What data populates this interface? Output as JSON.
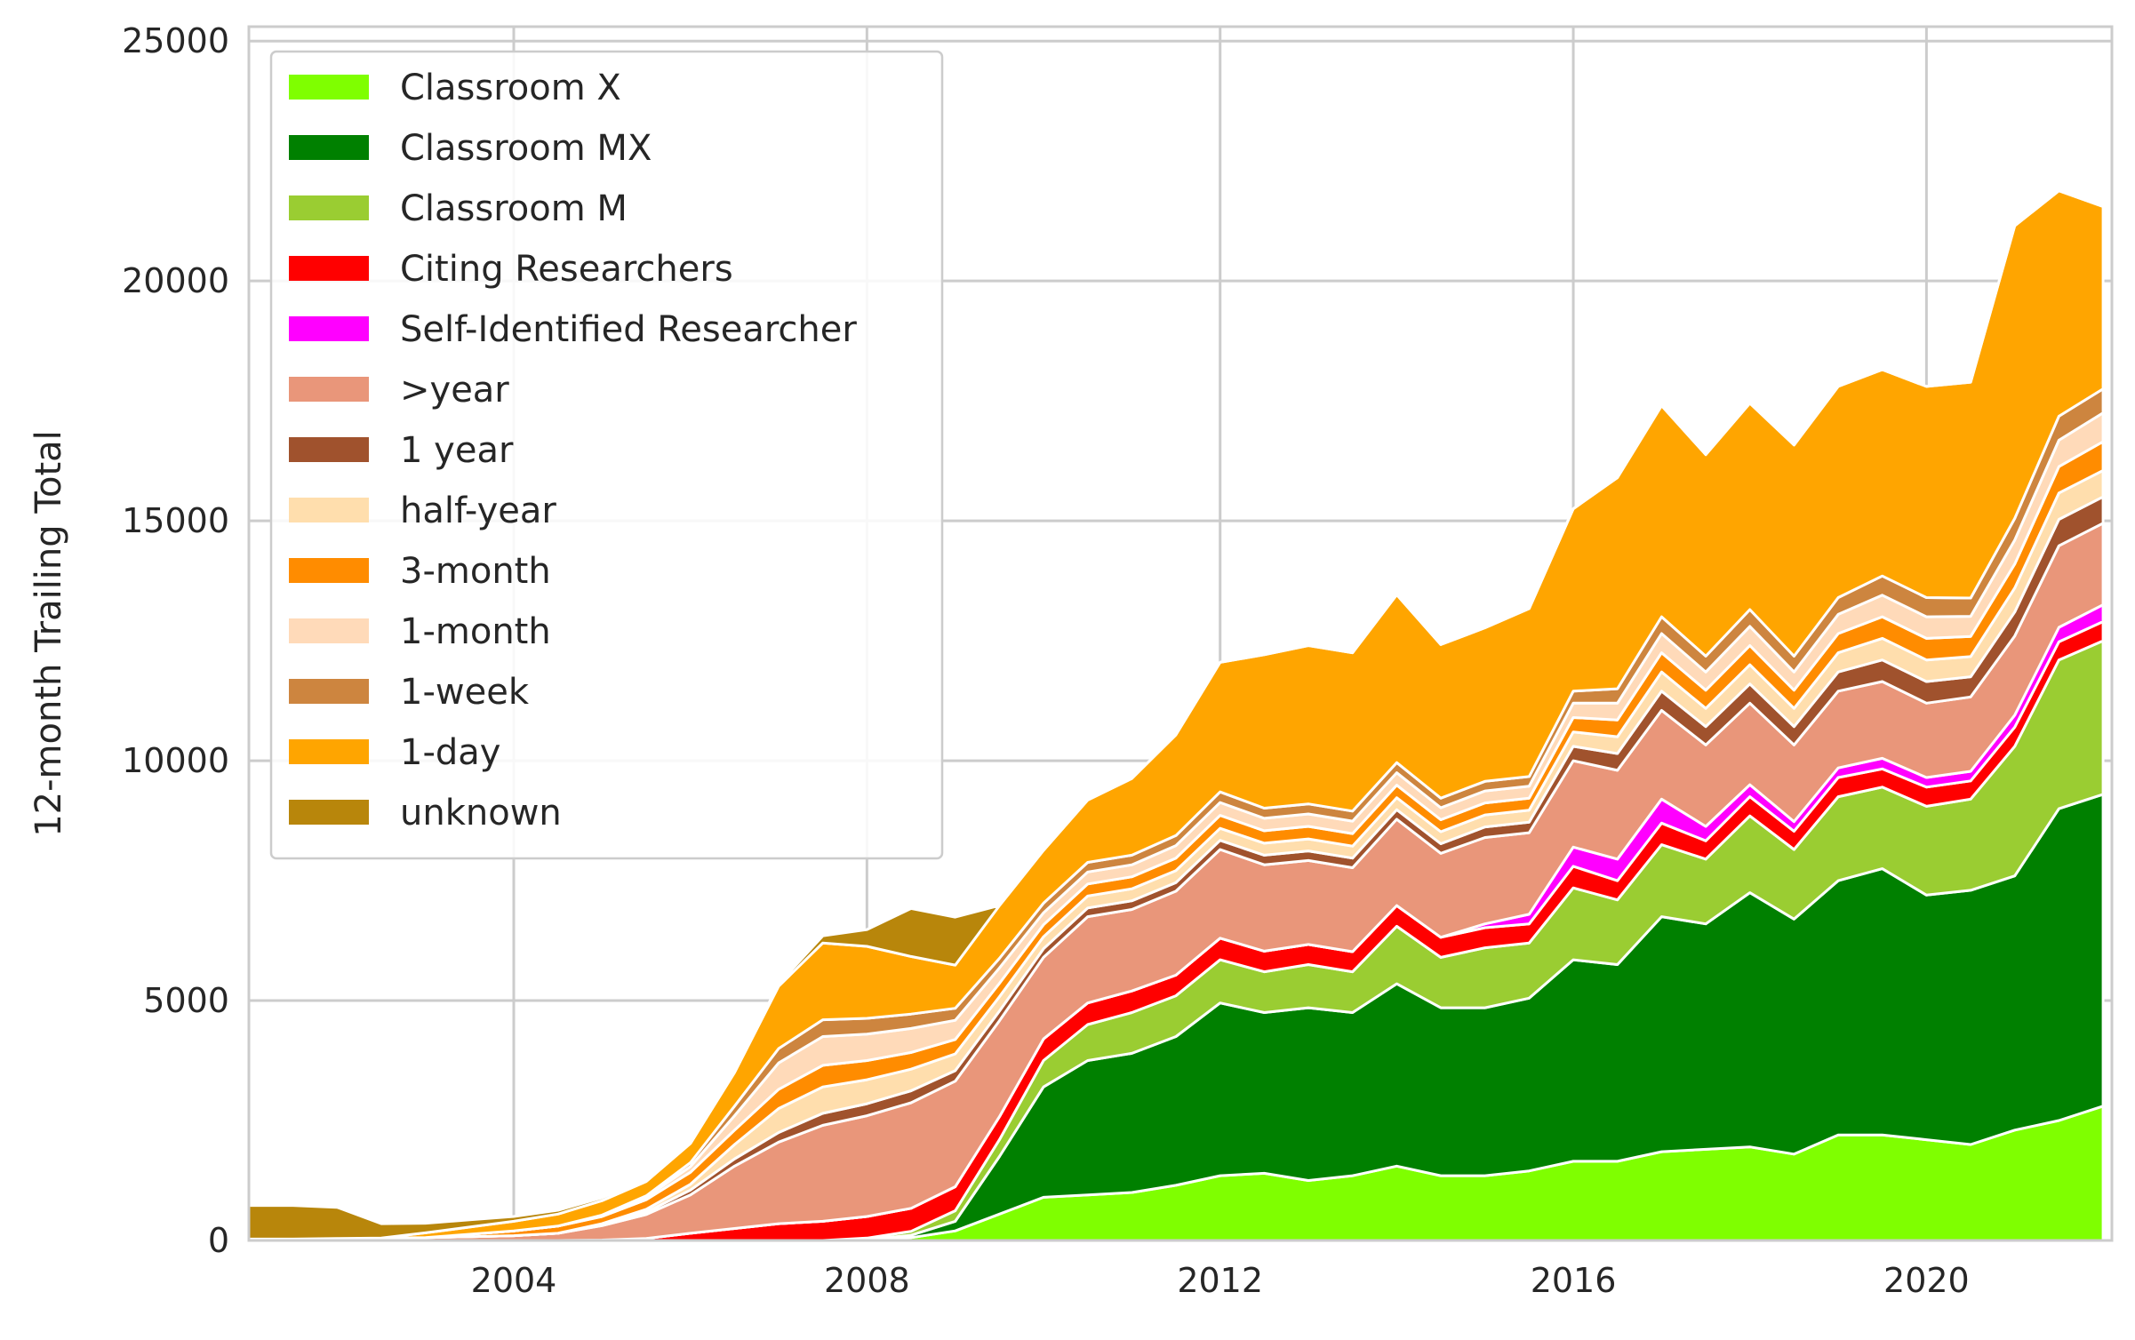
{
  "chart_data": {
    "type": "area",
    "stacked": true,
    "title": "",
    "xlabel": "",
    "ylabel": "12-month Trailing Total",
    "xlim": [
      2001.0,
      2022.1
    ],
    "ylim": [
      0,
      25300
    ],
    "xticks": [
      2004,
      2008,
      2012,
      2016,
      2020
    ],
    "yticks": [
      0,
      5000,
      10000,
      15000,
      20000,
      25000
    ],
    "grid": true,
    "legend_position": "top-left",
    "x": [
      2001.0,
      2001.5,
      2002.0,
      2002.5,
      2003.0,
      2003.5,
      2004.0,
      2004.5,
      2005.0,
      2005.5,
      2006.0,
      2006.5,
      2007.0,
      2007.5,
      2008.0,
      2008.5,
      2009.0,
      2009.5,
      2010.0,
      2010.5,
      2011.0,
      2011.5,
      2012.0,
      2012.5,
      2013.0,
      2013.5,
      2014.0,
      2014.5,
      2015.0,
      2015.5,
      2016.0,
      2016.5,
      2017.0,
      2017.5,
      2018.0,
      2018.5,
      2019.0,
      2019.5,
      2020.0,
      2020.5,
      2021.0,
      2021.5,
      2022.0
    ],
    "series": [
      {
        "name": "Classroom X",
        "color": "#7fff00",
        "values": [
          0,
          0,
          0,
          0,
          0,
          0,
          0,
          0,
          0,
          0,
          0,
          0,
          0,
          0,
          20,
          60,
          200,
          550,
          900,
          950,
          1000,
          1150,
          1350,
          1400,
          1250,
          1350,
          1550,
          1350,
          1350,
          1450,
          1650,
          1650,
          1850,
          1900,
          1950,
          1800,
          2200,
          2200,
          2100,
          2000,
          2300,
          2500,
          2800
        ]
      },
      {
        "name": "Classroom MX",
        "color": "#008000",
        "values": [
          0,
          0,
          0,
          0,
          0,
          0,
          0,
          0,
          0,
          0,
          0,
          0,
          0,
          0,
          0,
          50,
          200,
          1200,
          2300,
          2800,
          2900,
          3100,
          3600,
          3350,
          3600,
          3400,
          3800,
          3500,
          3500,
          3600,
          4200,
          4100,
          4900,
          4700,
          5300,
          4900,
          5300,
          5550,
          5100,
          5300,
          5300,
          6500,
          6500
        ]
      },
      {
        "name": "Classroom M",
        "color": "#9acd32",
        "values": [
          0,
          0,
          0,
          0,
          0,
          0,
          0,
          0,
          0,
          0,
          0,
          0,
          0,
          0,
          30,
          80,
          220,
          350,
          550,
          750,
          850,
          850,
          900,
          850,
          900,
          850,
          1200,
          1050,
          1250,
          1150,
          1500,
          1350,
          1500,
          1350,
          1600,
          1450,
          1750,
          1700,
          1850,
          1900,
          2700,
          3100,
          3200
        ]
      },
      {
        "name": "Citing Researchers",
        "color": "#ff0000",
        "values": [
          0,
          0,
          0,
          0,
          0,
          0,
          0,
          0,
          10,
          40,
          150,
          250,
          350,
          400,
          450,
          480,
          500,
          480,
          450,
          450,
          450,
          430,
          450,
          430,
          420,
          420,
          430,
          420,
          420,
          400,
          450,
          400,
          450,
          380,
          400,
          380,
          400,
          380,
          400,
          380,
          400,
          380,
          400
        ]
      },
      {
        "name": "Self-Identified Researcher",
        "color": "#ff00ff",
        "values": [
          0,
          0,
          0,
          0,
          0,
          0,
          0,
          0,
          0,
          0,
          0,
          0,
          0,
          0,
          0,
          0,
          0,
          0,
          0,
          0,
          0,
          0,
          0,
          0,
          0,
          0,
          0,
          0,
          80,
          200,
          400,
          450,
          500,
          300,
          250,
          200,
          200,
          220,
          200,
          200,
          250,
          300,
          350
        ]
      },
      {
        "name": ">year",
        "color": "#e9967a",
        "values": [
          30,
          30,
          40,
          50,
          60,
          80,
          100,
          150,
          300,
          500,
          800,
          1300,
          1700,
          2000,
          2100,
          2200,
          2200,
          2000,
          1700,
          1800,
          1700,
          1750,
          1850,
          1800,
          1750,
          1750,
          1800,
          1750,
          1800,
          1700,
          1800,
          1850,
          1850,
          1700,
          1700,
          1600,
          1600,
          1600,
          1550,
          1550,
          1650,
          1700,
          1700
        ]
      },
      {
        "name": "1 year",
        "color": "#a0522d",
        "values": [
          0,
          0,
          0,
          0,
          0,
          0,
          0,
          0,
          20,
          50,
          100,
          150,
          200,
          250,
          250,
          250,
          220,
          200,
          180,
          180,
          180,
          180,
          190,
          200,
          200,
          200,
          200,
          200,
          220,
          220,
          300,
          350,
          400,
          380,
          400,
          380,
          400,
          450,
          450,
          420,
          500,
          550,
          550
        ]
      },
      {
        "name": "half-year",
        "color": "#ffdead",
        "values": [
          0,
          0,
          0,
          0,
          0,
          0,
          0,
          0,
          20,
          60,
          120,
          300,
          500,
          550,
          500,
          450,
          350,
          300,
          250,
          250,
          250,
          250,
          250,
          250,
          250,
          250,
          250,
          250,
          250,
          250,
          300,
          350,
          400,
          380,
          400,
          380,
          400,
          450,
          450,
          420,
          500,
          550,
          550
        ]
      },
      {
        "name": "3-month",
        "color": "#ff8c00",
        "values": [
          0,
          0,
          0,
          0,
          0,
          50,
          100,
          150,
          150,
          200,
          250,
          300,
          400,
          450,
          400,
          350,
          300,
          280,
          250,
          250,
          250,
          260,
          270,
          260,
          260,
          260,
          260,
          250,
          250,
          250,
          300,
          350,
          400,
          380,
          400,
          380,
          400,
          450,
          450,
          420,
          500,
          550,
          600
        ]
      },
      {
        "name": "1-month",
        "color": "#ffdab9",
        "values": [
          0,
          0,
          0,
          0,
          0,
          0,
          0,
          0,
          20,
          50,
          120,
          300,
          550,
          600,
          550,
          500,
          400,
          320,
          250,
          250,
          250,
          260,
          270,
          260,
          260,
          260,
          260,
          250,
          250,
          250,
          300,
          350,
          400,
          380,
          400,
          380,
          400,
          450,
          450,
          420,
          500,
          550,
          600
        ]
      },
      {
        "name": "1-week",
        "color": "#cd853f",
        "values": [
          0,
          0,
          0,
          0,
          0,
          0,
          0,
          0,
          10,
          30,
          80,
          200,
          300,
          350,
          330,
          300,
          250,
          200,
          200,
          200,
          200,
          210,
          220,
          210,
          210,
          210,
          210,
          200,
          200,
          200,
          250,
          300,
          350,
          330,
          350,
          330,
          350,
          400,
          400,
          380,
          450,
          500,
          500
        ]
      },
      {
        "name": "1-day",
        "color": "#ffa500",
        "values": [
          0,
          0,
          0,
          0,
          100,
          150,
          200,
          250,
          300,
          300,
          400,
          700,
          1300,
          1600,
          1500,
          1200,
          900,
          1100,
          1100,
          1300,
          1600,
          2100,
          2700,
          3200,
          3300,
          3300,
          3500,
          3200,
          3200,
          3500,
          3800,
          4400,
          4400,
          4200,
          4300,
          4400,
          4400,
          4300,
          4400,
          4500,
          6100,
          4700,
          3800
        ]
      },
      {
        "name": "unknown",
        "color": "#b8860b",
        "values": [
          700,
          700,
          650,
          300,
          200,
          150,
          100,
          80,
          60,
          50,
          40,
          40,
          50,
          150,
          350,
          1000,
          1000,
          0,
          0,
          0,
          0,
          0,
          0,
          0,
          0,
          0,
          0,
          0,
          0,
          0,
          0,
          0,
          0,
          0,
          0,
          0,
          0,
          0,
          0,
          0,
          0,
          0,
          0
        ]
      }
    ]
  }
}
